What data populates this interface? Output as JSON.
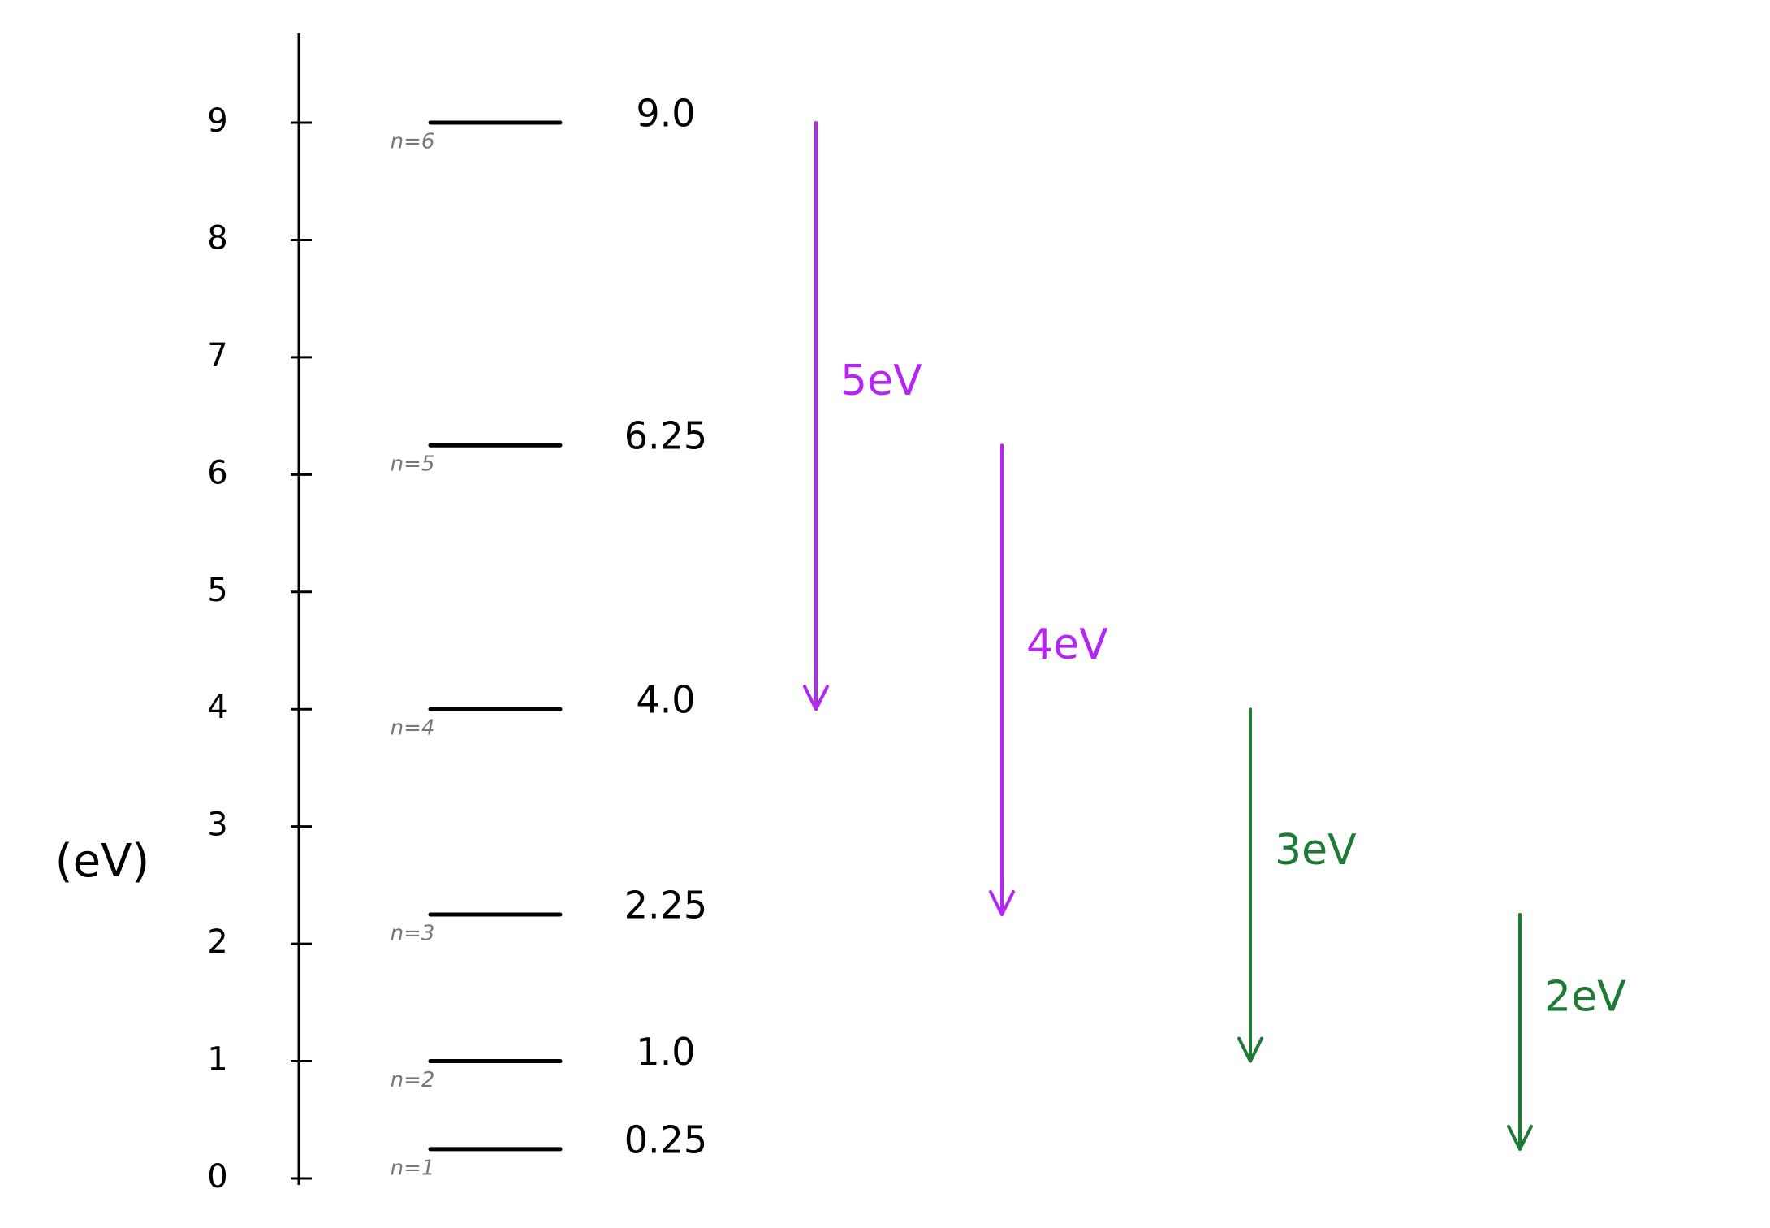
{
  "axis": {
    "label": "(eV)",
    "ticks": [
      0,
      1,
      2,
      3,
      4,
      5,
      6,
      7,
      8,
      9
    ]
  },
  "levels": [
    {
      "name": "n=1",
      "energy": 0.25
    },
    {
      "name": "n=2",
      "energy": {
        "value": 1,
        "label": "1.0"
      }
    },
    {
      "name": "n=3",
      "energy": 2.25
    },
    {
      "name": "n=4",
      "energy": {
        "value": 4,
        "label": "4.0"
      }
    },
    {
      "name": "n=5",
      "energy": 6.25
    },
    {
      "name": "n=6",
      "energy": {
        "value": 9,
        "label": "9.0"
      }
    }
  ],
  "transitions": [
    {
      "label": "5eV",
      "from": 9,
      "to": 4,
      "color": "#b526f5"
    },
    {
      "label": "4eV",
      "from": 6.25,
      "to": 2.25,
      "color": "#b526f5"
    },
    {
      "label": "3eV",
      "from": 4,
      "to": 1,
      "color": "#1e7b36"
    },
    {
      "label": "2eV",
      "from": 2.25,
      "to": 0.25,
      "color": "#1e7b36"
    }
  ]
}
